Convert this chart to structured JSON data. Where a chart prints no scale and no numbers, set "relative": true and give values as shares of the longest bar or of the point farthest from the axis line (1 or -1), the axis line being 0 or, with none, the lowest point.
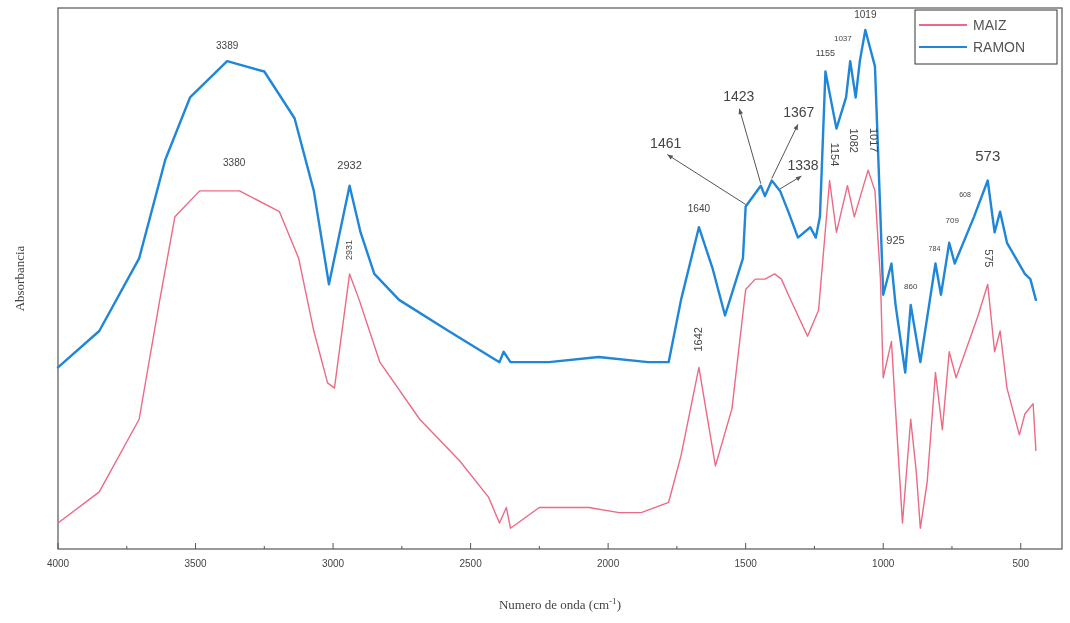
{
  "chart_data": {
    "type": "line",
    "relative": true,
    "xlabel": "Numero de onda (cm$^{-1}$)",
    "ylabel": "Absorbancia",
    "xlim": [
      4000,
      350
    ],
    "xticks": [
      4000,
      {
        "value": 3750,
        "label": null
      },
      3500,
      {
        "value": 3250,
        "label": null
      },
      3000,
      {
        "value": 2750,
        "label": null
      },
      2500,
      {
        "value": 2250,
        "label": null
      },
      2000,
      {
        "value": 1750,
        "label": null
      },
      1500,
      {
        "value": 1250,
        "label": null
      },
      1000,
      {
        "value": 750,
        "label": null
      },
      500
    ],
    "legend": "top right",
    "series": [
      {
        "name": "MAIZ",
        "color": "#ec6a85",
        "x": [
          4000,
          3850,
          3705,
          3630,
          3575,
          3485,
          3340,
          3195,
          3125,
          3070,
          3020,
          2995,
          2940,
          2905,
          2830,
          2685,
          2540,
          2435,
          2395,
          2370,
          2355,
          2250,
          2180,
          2070,
          1960,
          1880,
          1780,
          1735,
          1670,
          1610,
          1550,
          1500,
          1465,
          1430,
          1395,
          1370,
          1345,
          1310,
          1275,
          1235,
          1195,
          1170,
          1130,
          1105,
          1055,
          1030,
          1010,
          1000,
          970,
          960,
          930,
          900,
          880,
          865,
          840,
          810,
          785,
          760,
          735,
          655,
          620,
          595,
          575,
          550,
          505,
          485,
          455,
          445
        ],
        "values": [
          0.05,
          0.11,
          0.25,
          0.48,
          0.64,
          0.69,
          0.69,
          0.65,
          0.56,
          0.42,
          0.32,
          0.31,
          0.53,
          0.48,
          0.36,
          0.25,
          0.17,
          0.1,
          0.05,
          0.08,
          0.04,
          0.08,
          0.08,
          0.08,
          0.07,
          0.07,
          0.09,
          0.18,
          0.35,
          0.16,
          0.27,
          0.5,
          0.52,
          0.52,
          0.53,
          0.52,
          0.49,
          0.45,
          0.41,
          0.46,
          0.71,
          0.61,
          0.7,
          0.64,
          0.73,
          0.69,
          0.52,
          0.33,
          0.4,
          0.31,
          0.05,
          0.25,
          0.15,
          0.04,
          0.13,
          0.34,
          0.23,
          0.38,
          0.33,
          0.45,
          0.51,
          0.38,
          0.42,
          0.31,
          0.22,
          0.26,
          0.28,
          0.19
        ]
      },
      {
        "name": "RAMON",
        "color": "#1f86d8",
        "x": [
          4000,
          3850,
          3705,
          3610,
          3520,
          3385,
          3250,
          3140,
          3070,
          3015,
          2940,
          2900,
          2850,
          2760,
          2580,
          2395,
          2380,
          2355,
          2215,
          2035,
          1855,
          1780,
          1735,
          1670,
          1620,
          1575,
          1510,
          1500,
          1445,
          1430,
          1405,
          1375,
          1345,
          1310,
          1265,
          1245,
          1230,
          1210,
          1170,
          1135,
          1120,
          1100,
          1085,
          1065,
          1030,
          1010,
          1000,
          970,
          955,
          920,
          900,
          865,
          810,
          790,
          760,
          740,
          670,
          620,
          595,
          575,
          550,
          485,
          465,
          445
        ],
        "values": [
          0.35,
          0.42,
          0.56,
          0.75,
          0.87,
          0.94,
          0.92,
          0.83,
          0.69,
          0.51,
          0.7,
          0.61,
          0.53,
          0.48,
          0.42,
          0.36,
          0.38,
          0.36,
          0.36,
          0.37,
          0.36,
          0.36,
          0.48,
          0.62,
          0.54,
          0.45,
          0.56,
          0.66,
          0.7,
          0.68,
          0.71,
          0.69,
          0.65,
          0.6,
          0.62,
          0.6,
          0.64,
          0.92,
          0.81,
          0.87,
          0.94,
          0.87,
          0.94,
          1,
          0.93,
          0.64,
          0.49,
          0.55,
          0.47,
          0.34,
          0.47,
          0.36,
          0.55,
          0.49,
          0.59,
          0.55,
          0.64,
          0.71,
          0.61,
          0.65,
          0.59,
          0.53,
          0.52,
          0.48
        ]
      }
    ],
    "annotations": [
      {
        "text": "3389",
        "x": 3385,
        "y": 0.94
      },
      {
        "text": "3380",
        "x": 3385,
        "y": 0.69
      },
      {
        "text": "2932",
        "x": 2940,
        "y": 0.7
      },
      {
        "text": "2931",
        "x": 2940,
        "y": 0.53
      },
      {
        "text": "1640",
        "x": 1670,
        "y": 0.62
      },
      {
        "text": "1642",
        "x": 1670,
        "y": 0.35
      },
      {
        "text": "1461",
        "x": 1500,
        "y": 0.66
      },
      {
        "text": "1423",
        "x": 1445,
        "y": 0.7
      },
      {
        "text": "1367",
        "x": 1405,
        "y": 0.71
      },
      {
        "text": "1338",
        "x": 1375,
        "y": 0.69
      },
      {
        "text": "1155",
        "x": 1210,
        "y": 0.92
      },
      {
        "text": "1037",
        "x": 1085,
        "y": 0.94
      },
      {
        "text": "1019",
        "x": 1065,
        "y": 1
      },
      {
        "text": "1154",
        "x": 1195,
        "y": 0.71
      },
      {
        "text": "1082",
        "x": 1130,
        "y": 0.7
      },
      {
        "text": "1017",
        "x": 1055,
        "y": 0.73
      },
      {
        "text": "925",
        "x": 970,
        "y": 0.55
      },
      {
        "text": "860",
        "x": 900,
        "y": 0.47
      },
      {
        "text": "784",
        "x": 810,
        "y": 0.55
      },
      {
        "text": "709",
        "x": 760,
        "y": 0.59
      },
      {
        "text": "608",
        "x": 670,
        "y": 0.64
      },
      {
        "text": "573",
        "x": 620,
        "y": 0.71
      },
      {
        "text": "575",
        "x": 620,
        "y": 0.51
      }
    ]
  }
}
